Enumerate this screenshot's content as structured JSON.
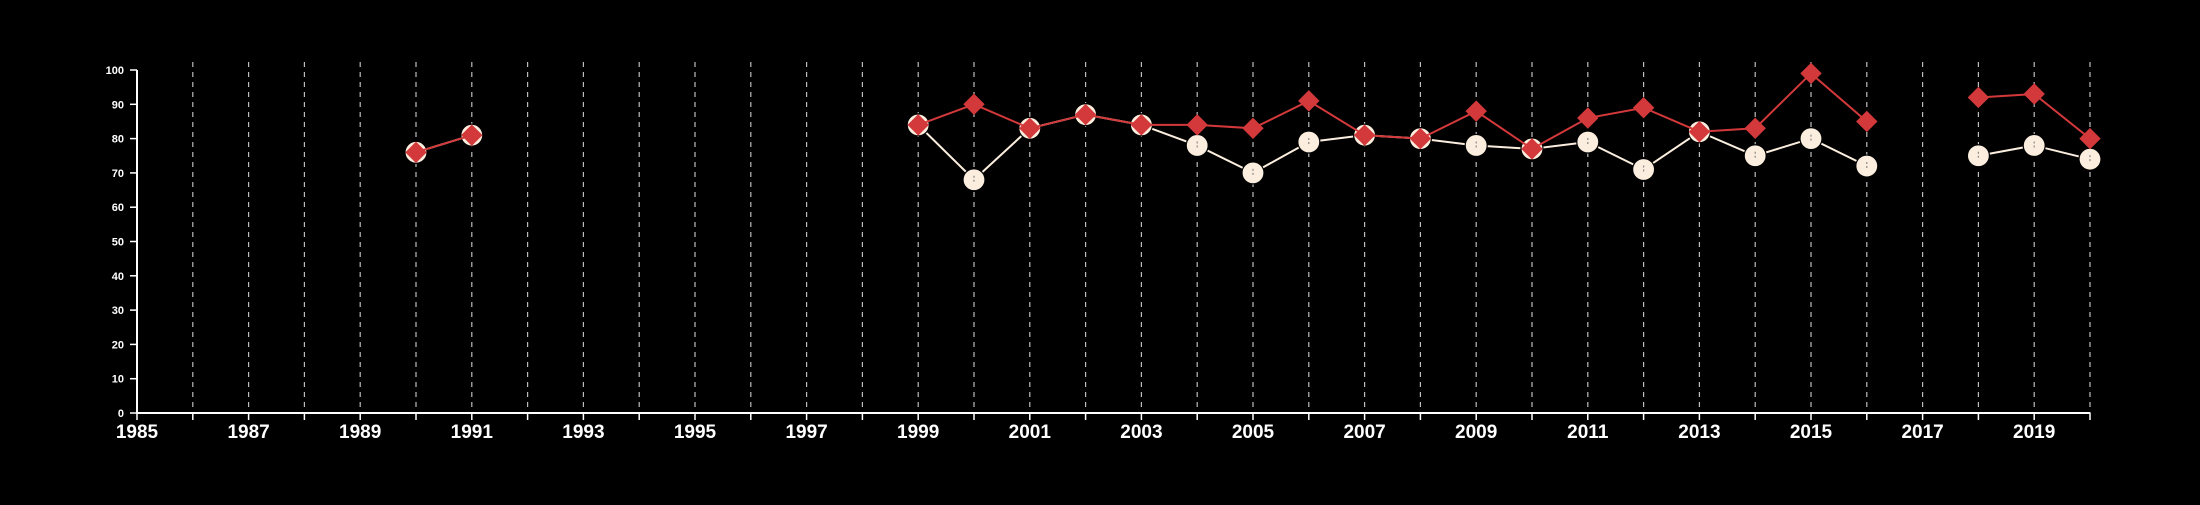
{
  "chart_data": {
    "type": "line",
    "title": "",
    "xlabel": "",
    "ylabel": "",
    "xlim": [
      1985,
      2020
    ],
    "ylim": [
      0,
      100
    ],
    "yticks": [
      0,
      10,
      20,
      30,
      40,
      50,
      60,
      70,
      80,
      90,
      100
    ],
    "yticks_labels": [
      "0",
      "10",
      "20",
      "30",
      "40",
      "50",
      "60",
      "70",
      "80",
      "90",
      "100"
    ],
    "xticks_labels": [
      "1985",
      "1987",
      "1989",
      "1991",
      "1993",
      "1995",
      "1997",
      "1999",
      "2001",
      "2003",
      "2005",
      "2007",
      "2009",
      "2011",
      "2013",
      "2015",
      "2017",
      "2019"
    ],
    "grid": "vertical dashed lines at each year",
    "legend": "none",
    "x": [
      1990,
      1991,
      1999,
      2000,
      2001,
      2002,
      2003,
      2004,
      2005,
      2006,
      2007,
      2008,
      2009,
      2010,
      2011,
      2012,
      2013,
      2014,
      2015,
      2016,
      2018,
      2019,
      2020
    ],
    "series": [
      {
        "color": "#fbeede",
        "marker": "circle",
        "values": [
          76,
          81,
          84,
          68,
          83,
          87,
          84,
          78,
          70,
          79,
          81,
          80,
          78,
          77,
          79,
          71,
          82,
          75,
          80,
          72,
          75,
          78,
          74
        ]
      },
      {
        "color": "#d3393b",
        "marker": "diamond",
        "values": [
          76,
          81,
          84,
          90,
          83,
          87,
          84,
          84,
          83,
          91,
          81,
          80,
          88,
          77,
          86,
          89,
          82,
          83,
          99,
          85,
          92,
          93,
          80
        ]
      }
    ]
  }
}
